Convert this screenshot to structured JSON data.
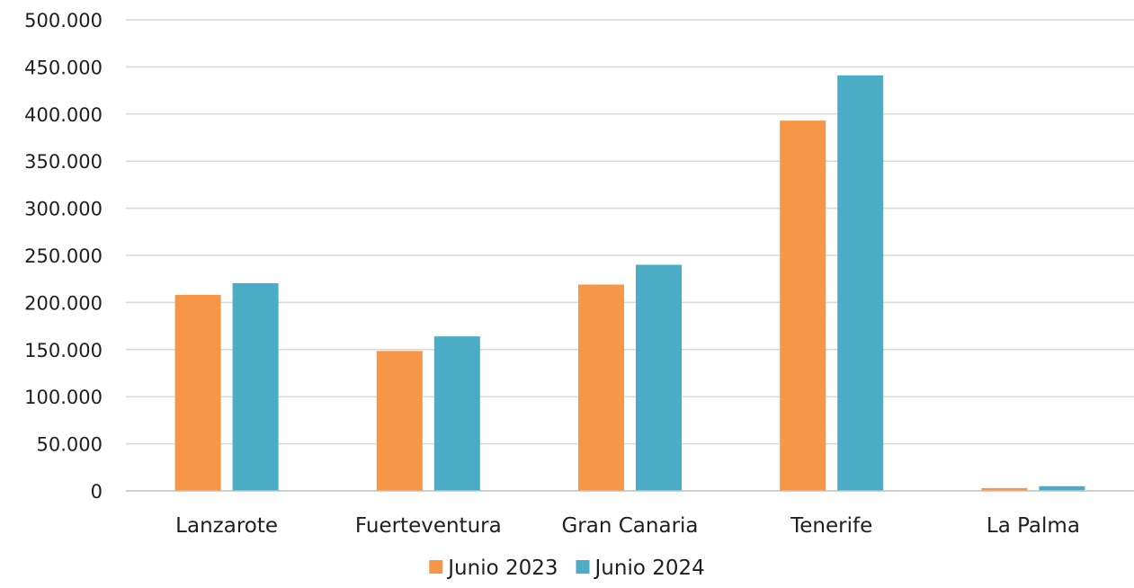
{
  "chart_data": {
    "type": "bar",
    "title": "",
    "xlabel": "",
    "ylabel": "",
    "categories": [
      "Lanzarote",
      "Fuerteventura",
      "Gran Canaria",
      "Tenerife",
      "La Palma"
    ],
    "series": [
      {
        "name": "Junio 2023",
        "color": "#F79646",
        "values": [
          208000,
          148500,
          219000,
          393000,
          3000
        ]
      },
      {
        "name": "Junio 2024",
        "color": "#4BACC6",
        "values": [
          220500,
          164000,
          240000,
          441000,
          5000
        ]
      }
    ],
    "ylim": [
      0,
      500000
    ],
    "yticks": [
      0,
      50000,
      100000,
      150000,
      200000,
      250000,
      300000,
      350000,
      400000,
      450000,
      500000
    ],
    "ytick_labels": [
      "0",
      "50.000",
      "100.000",
      "150.000",
      "200.000",
      "250.000",
      "300.000",
      "350.000",
      "400.000",
      "450.000",
      "500.000"
    ],
    "grid": true,
    "legend_position": "bottom"
  }
}
